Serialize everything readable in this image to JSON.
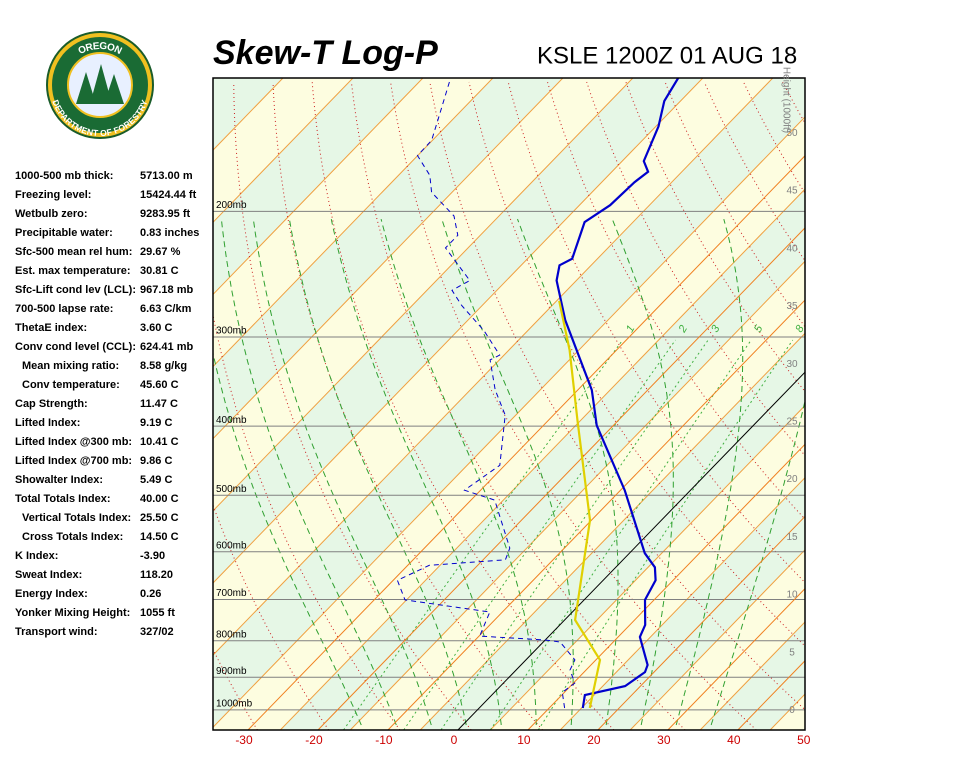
{
  "logo": {
    "top": "OREGON",
    "bottom": "DEPARTMENT OF FORESTRY"
  },
  "stats": {
    "rows": [
      [
        "1000-500 mb thick:",
        "5713.00 m"
      ],
      [
        "Freezing level:",
        "15424.44 ft"
      ],
      [
        "Wetbulb zero:",
        "9283.95 ft"
      ],
      [
        "Precipitable water:",
        "0.83 inches"
      ],
      [
        "Sfc-500 mean rel hum:",
        "29.67 %"
      ],
      [
        "Est. max temperature:",
        "30.81 C"
      ],
      [
        "Sfc-Lift cond lev (LCL):",
        "967.18 mb"
      ],
      [
        "700-500 lapse rate:",
        "6.63 C/km"
      ],
      [
        "ThetaE index:",
        "3.60 C"
      ],
      [
        "Conv cond level (CCL):",
        "624.41 mb"
      ],
      [
        "Mean mixing ratio:",
        "8.58 g/kg"
      ],
      [
        "Conv temperature:",
        "45.60 C"
      ],
      [
        "Cap Strength:",
        "11.47 C"
      ],
      [
        "Lifted Index:",
        "9.19 C"
      ],
      [
        "Lifted Index @300 mb:",
        "10.41 C"
      ],
      [
        "Lifted Index @700 mb:",
        "9.86 C"
      ],
      [
        "Showalter Index:",
        "5.49 C"
      ],
      [
        "Total Totals Index:",
        "40.00 C"
      ],
      [
        "Vertical Totals Index:",
        "25.50 C"
      ],
      [
        "Cross Totals Index:",
        "14.50 C"
      ],
      [
        "K Index:",
        "-3.90"
      ],
      [
        "Sweat Index:",
        "118.20"
      ],
      [
        "Energy Index:",
        "0.26"
      ],
      [
        "Yonker Mixing Height:",
        "1055 ft"
      ],
      [
        "Transport wind:",
        "327/02"
      ]
    ]
  },
  "chart_data": {
    "type": "skewt",
    "title": "Skew-T Log-P",
    "subtitle": "KSLE 1200Z 01 AUG 18",
    "xlim": [
      -35,
      49.6
    ],
    "xticks": [
      -30,
      -20,
      -10,
      0,
      10,
      20,
      30,
      40,
      50
    ],
    "xtick_color": "#cc0000",
    "ylim": [
      1067,
      130
    ],
    "log_y": true,
    "yticks": [
      {
        "value": 200,
        "label": "200mb"
      },
      {
        "value": 300,
        "label": "300mb"
      },
      {
        "value": 400,
        "label": "400mb"
      },
      {
        "value": 500,
        "label": "500mb"
      },
      {
        "value": 600,
        "label": "600mb"
      },
      {
        "value": 700,
        "label": "700mb"
      },
      {
        "value": 800,
        "label": "800mb"
      },
      {
        "value": 900,
        "label": "900mb"
      },
      {
        "value": 1000,
        "label": "1000mb"
      }
    ],
    "y2label": "Height (1000ft)",
    "y2lim": [
      -1.7,
      54.8
    ],
    "y2ticks": [
      0,
      5,
      10,
      15,
      20,
      25,
      30,
      35,
      40,
      45,
      50
    ],
    "mixing_ratios": [
      1,
      2,
      3,
      5,
      8
    ],
    "series": [
      {
        "color": "#0000cc",
        "style": "solid",
        "pressure": [
          994,
          953,
          926,
          885,
          865,
          790,
          760,
          701,
          658,
          631,
          603,
          492,
          399,
          356,
          284,
          250,
          238,
          233,
          207,
          196,
          182,
          176,
          170,
          152,
          140,
          130
        ],
        "values": [
          14.8,
          13.3,
          17.8,
          18.7,
          18.1,
          13.1,
          12.2,
          8.7,
          7.5,
          5.6,
          2.2,
          -9.4,
          -22.4,
          -28.0,
          -41.5,
          -48.2,
          -49.9,
          -49.0,
          -52.3,
          -51.0,
          -50.7,
          -50.2,
          -52.3,
          -55.0,
          -57.7,
          -58.9
        ]
      },
      {
        "color": "#0000cc",
        "style": "dashed",
        "pressure": [
          994,
          945,
          917,
          879,
          851,
          803,
          798,
          788,
          729,
          701,
          658,
          627,
          616,
          593,
          508,
          492,
          454,
          386,
          356,
          323,
          318,
          294,
          271,
          258,
          250,
          225,
          216,
          203,
          188,
          178,
          167,
          159,
          149,
          131
        ],
        "values": [
          12.2,
          9.7,
          10.2,
          7.7,
          7.0,
          2.4,
          0.0,
          -9.9,
          -11.8,
          -25.6,
          -29.4,
          -26.9,
          -16.8,
          -17.8,
          -26.6,
          -32.3,
          -30.7,
          -36.9,
          -41.8,
          -46.7,
          -46.0,
          -51.6,
          -58.3,
          -61.8,
          -60.6,
          -68.6,
          -68.6,
          -71.8,
          -78.3,
          -80.9,
          -85.4,
          -85.5,
          -87.4,
          -91.2
        ]
      },
      {
        "color": "#e0d000",
        "style": "solid",
        "pressure": [
          994,
          851,
          748,
          542,
          393,
          313,
          267
        ],
        "values": [
          15.8,
          10.6,
          1.5,
          -10.2,
          -25.8,
          -36.7,
          -45.0
        ]
      }
    ]
  }
}
